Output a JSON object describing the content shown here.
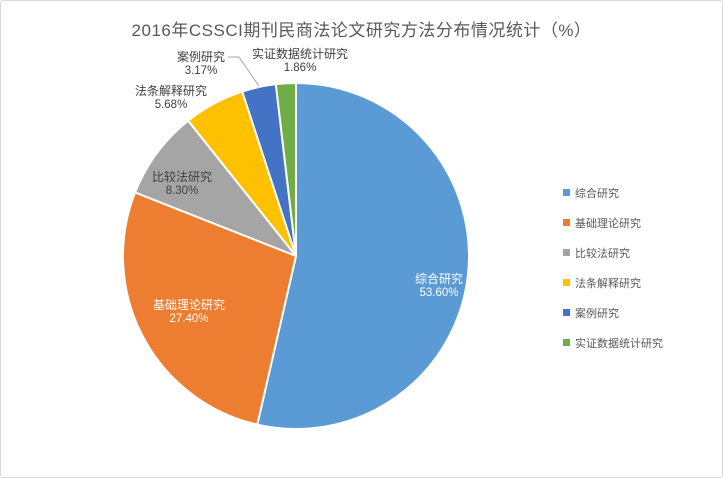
{
  "window": {
    "background": "#FFFFFF",
    "border_color": "#D9D9D9"
  },
  "chart_data": {
    "type": "pie",
    "title": "2016年CSSCI期刊民商法论文研究方法分布情况统计（%）",
    "categories": [
      "综合研究",
      "基础理论研究",
      "比较法研究",
      "法条解释研究",
      "案例研究",
      "实证数据统计研究"
    ],
    "values": [
      53.6,
      27.4,
      8.3,
      5.68,
      3.17,
      1.86
    ],
    "value_labels": [
      "53.60%",
      "27.40%",
      "8.30%",
      "5.68%",
      "3.17%",
      "1.86%"
    ],
    "colors": [
      "#5B9BD5",
      "#ED7D31",
      "#A5A5A5",
      "#FFC000",
      "#4472C4",
      "#70AD47"
    ],
    "slice_ids": [
      "comprehensive-research",
      "basic-theory-research",
      "comparative-law-research",
      "statutory-interpretation-research",
      "case-study-research",
      "empirical-data-statistics-research"
    ],
    "start_angle_deg": 0,
    "direction": "clockwise",
    "legend_position": "right",
    "grid": false,
    "slice_border_color": "#FFFFFF",
    "leader_line_color": "#A6A6A6",
    "title_color": "#595959",
    "label_color_outside": "#404040",
    "label_color_inside": "#FFFFFF",
    "legend_text_color": "#595959"
  }
}
